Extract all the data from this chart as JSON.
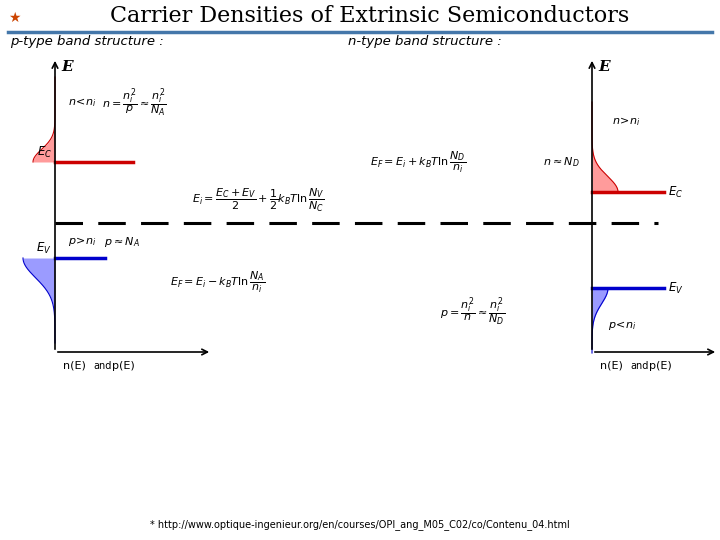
{
  "title": "Carrier Densities of Extrinsic Semiconductors",
  "title_fontsize": 16,
  "background_color": "#ffffff",
  "subtitle_left": "p-type band structure :",
  "subtitle_right": "n-type band structure :",
  "subtitle_fontsize": 9.5,
  "url": "* http://www.optique-ingenieur.org/en/courses/OPI_ang_M05_C02/co/Contenu_04.html",
  "blue_line_color": "#0000cc",
  "red_line_color": "#cc0000",
  "fill_red": "#ff6666",
  "fill_blue": "#6666ff",
  "axis_color": "#000000",
  "teal_line_color": "#4477aa"
}
